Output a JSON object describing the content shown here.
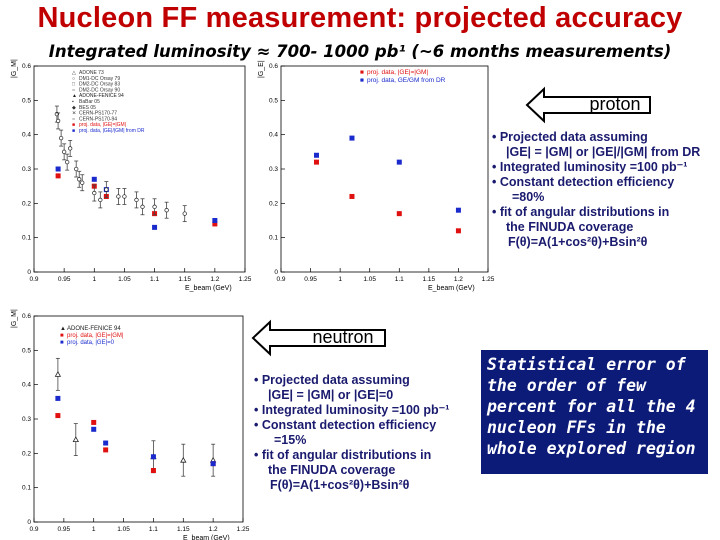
{
  "title": "Nucleon FF measurement: projected accuracy",
  "subtitle": "Integrated luminosity ≈ 700- 1000 pb¹ (~6 months measurements)",
  "proton_label": "proton",
  "neutron_label": "neutron",
  "proton_bullets": [
    "• Projected data assuming",
    "|GE| = |GM| or |GE|/|GM| from DR",
    "• Integrated luminosity =100 pb⁻¹",
    "• Constant detection efficiency",
    "=80%",
    "• fit of angular distributions in",
    "the FINUDA coverage",
    "F(θ)=A(1+cos²θ)+Bsin²θ"
  ],
  "neutron_bullets": [
    "• Projected data assuming",
    "|GE| = |GM| or |GE|=0",
    "• Integrated luminosity =100 pb⁻¹",
    "• Constant detection efficiency",
    "=15%",
    "• fit of angular distributions in",
    "the FINUDA coverage",
    "F(θ)=A(1+cos²θ)+Bsin²θ"
  ],
  "conclusion": "Statistical error of the order of few percent for all the 4 nucleon FFs in the whole explored region",
  "colors": {
    "title": "#c00000",
    "red": "#e01010",
    "blue": "#1a2acc",
    "navy": "#0c1a78"
  },
  "chart_data": [
    {
      "type": "scatter",
      "id": "proton-world",
      "ylabel": "|G_M|",
      "xlabel": "E_beam (GeV)",
      "xlim": [
        0.9,
        1.25
      ],
      "ylim": [
        0,
        0.6
      ],
      "x_ticks": [
        "0.9",
        "0.95",
        "1",
        "1.05",
        "1.1",
        "1.15",
        "1.2",
        "1.25"
      ],
      "y_ticks": [
        "0",
        "0.1",
        "0.2",
        "0.3",
        "0.4",
        "0.5",
        "0.6"
      ],
      "legend": [
        "ADONE 73",
        "DM1-DC Orsay 79",
        "DM2-DC Orsay 83",
        "DM2-DC Orsay 90",
        "ADONE-FENICE 94",
        "BaBar 05",
        "BES 05",
        "CERN-PS170-77",
        "CERN-PS170-94",
        "proj. data, |GE|=|GM|",
        "proj. data, |GE|/|GM| from DR"
      ],
      "series": [
        {
          "name": "proj. data, |GE|=|GM|",
          "x": [
            0.94,
            1.0,
            1.02,
            1.1,
            1.2
          ],
          "y": [
            0.28,
            0.25,
            0.22,
            0.17,
            0.14
          ]
        },
        {
          "name": "proj. data, |GE|/|GM| from DR",
          "x": [
            0.94,
            1.0,
            1.02,
            1.1,
            1.2
          ],
          "y": [
            0.3,
            0.27,
            0.24,
            0.13,
            0.15
          ]
        },
        {
          "name": "world data",
          "x": [
            0.938,
            0.94,
            0.945,
            0.95,
            0.955,
            0.96,
            0.97,
            0.975,
            0.98,
            1.0,
            1.01,
            1.02,
            1.04,
            1.05,
            1.07,
            1.08,
            1.1,
            1.12,
            1.15
          ],
          "y": [
            0.46,
            0.44,
            0.39,
            0.35,
            0.32,
            0.36,
            0.3,
            0.27,
            0.26,
            0.23,
            0.21,
            0.24,
            0.22,
            0.22,
            0.21,
            0.19,
            0.19,
            0.18,
            0.17
          ]
        }
      ]
    },
    {
      "type": "scatter",
      "id": "proton-ratio",
      "ylabel": "|G_E|",
      "xlabel": "E_beam (GeV)",
      "xlim": [
        0.9,
        1.25
      ],
      "ylim": [
        0,
        0.6
      ],
      "x_ticks": [
        "0.9",
        "0.95",
        "1",
        "1.05",
        "1.1",
        "1.15",
        "1.2",
        "1.25"
      ],
      "y_ticks": [
        "0",
        "0.1",
        "0.2",
        "0.3",
        "0.4",
        "0.5",
        "0.6"
      ],
      "legend": [
        "proj. data, |GE|=|GM|",
        "proj. data, GE/GM from DR"
      ],
      "series": [
        {
          "name": "proj. data, |GE|=|GM|",
          "x": [
            0.96,
            1.02,
            1.1,
            1.2
          ],
          "y": [
            0.32,
            0.22,
            0.17,
            0.12
          ]
        },
        {
          "name": "proj. data, GE/GM from DR",
          "x": [
            0.96,
            1.02,
            1.1,
            1.2
          ],
          "y": [
            0.34,
            0.39,
            0.32,
            0.18
          ]
        }
      ]
    },
    {
      "type": "scatter",
      "id": "neutron",
      "ylabel": "|G_M|",
      "xlabel": "E_beam (GeV)",
      "xlim": [
        0.9,
        1.25
      ],
      "ylim": [
        0,
        0.6
      ],
      "x_ticks": [
        "0.9",
        "0.95",
        "1",
        "1.05",
        "1.1",
        "1.15",
        "1.2",
        "1.25"
      ],
      "y_ticks": [
        "0",
        "0.1",
        "0.2",
        "0.3",
        "0.4",
        "0.5",
        "0.6"
      ],
      "legend": [
        "ADONE-FENICE 94",
        "proj. data, |GE|=|GM|",
        "proj. data, |GE|=0"
      ],
      "series": [
        {
          "name": "ADONE-FENICE 94",
          "x": [
            0.94,
            0.97,
            1.1,
            1.15,
            1.2
          ],
          "y": [
            0.43,
            0.24,
            0.19,
            0.18,
            0.18
          ]
        },
        {
          "name": "proj. data, |GE|=|GM|",
          "x": [
            0.94,
            1.0,
            1.02,
            1.1,
            1.2
          ],
          "y": [
            0.31,
            0.29,
            0.21,
            0.15,
            0.17
          ]
        },
        {
          "name": "proj. data, |GE|=0",
          "x": [
            0.94,
            1.0,
            1.02,
            1.1,
            1.2
          ],
          "y": [
            0.36,
            0.27,
            0.23,
            0.19,
            0.17
          ]
        }
      ]
    }
  ]
}
